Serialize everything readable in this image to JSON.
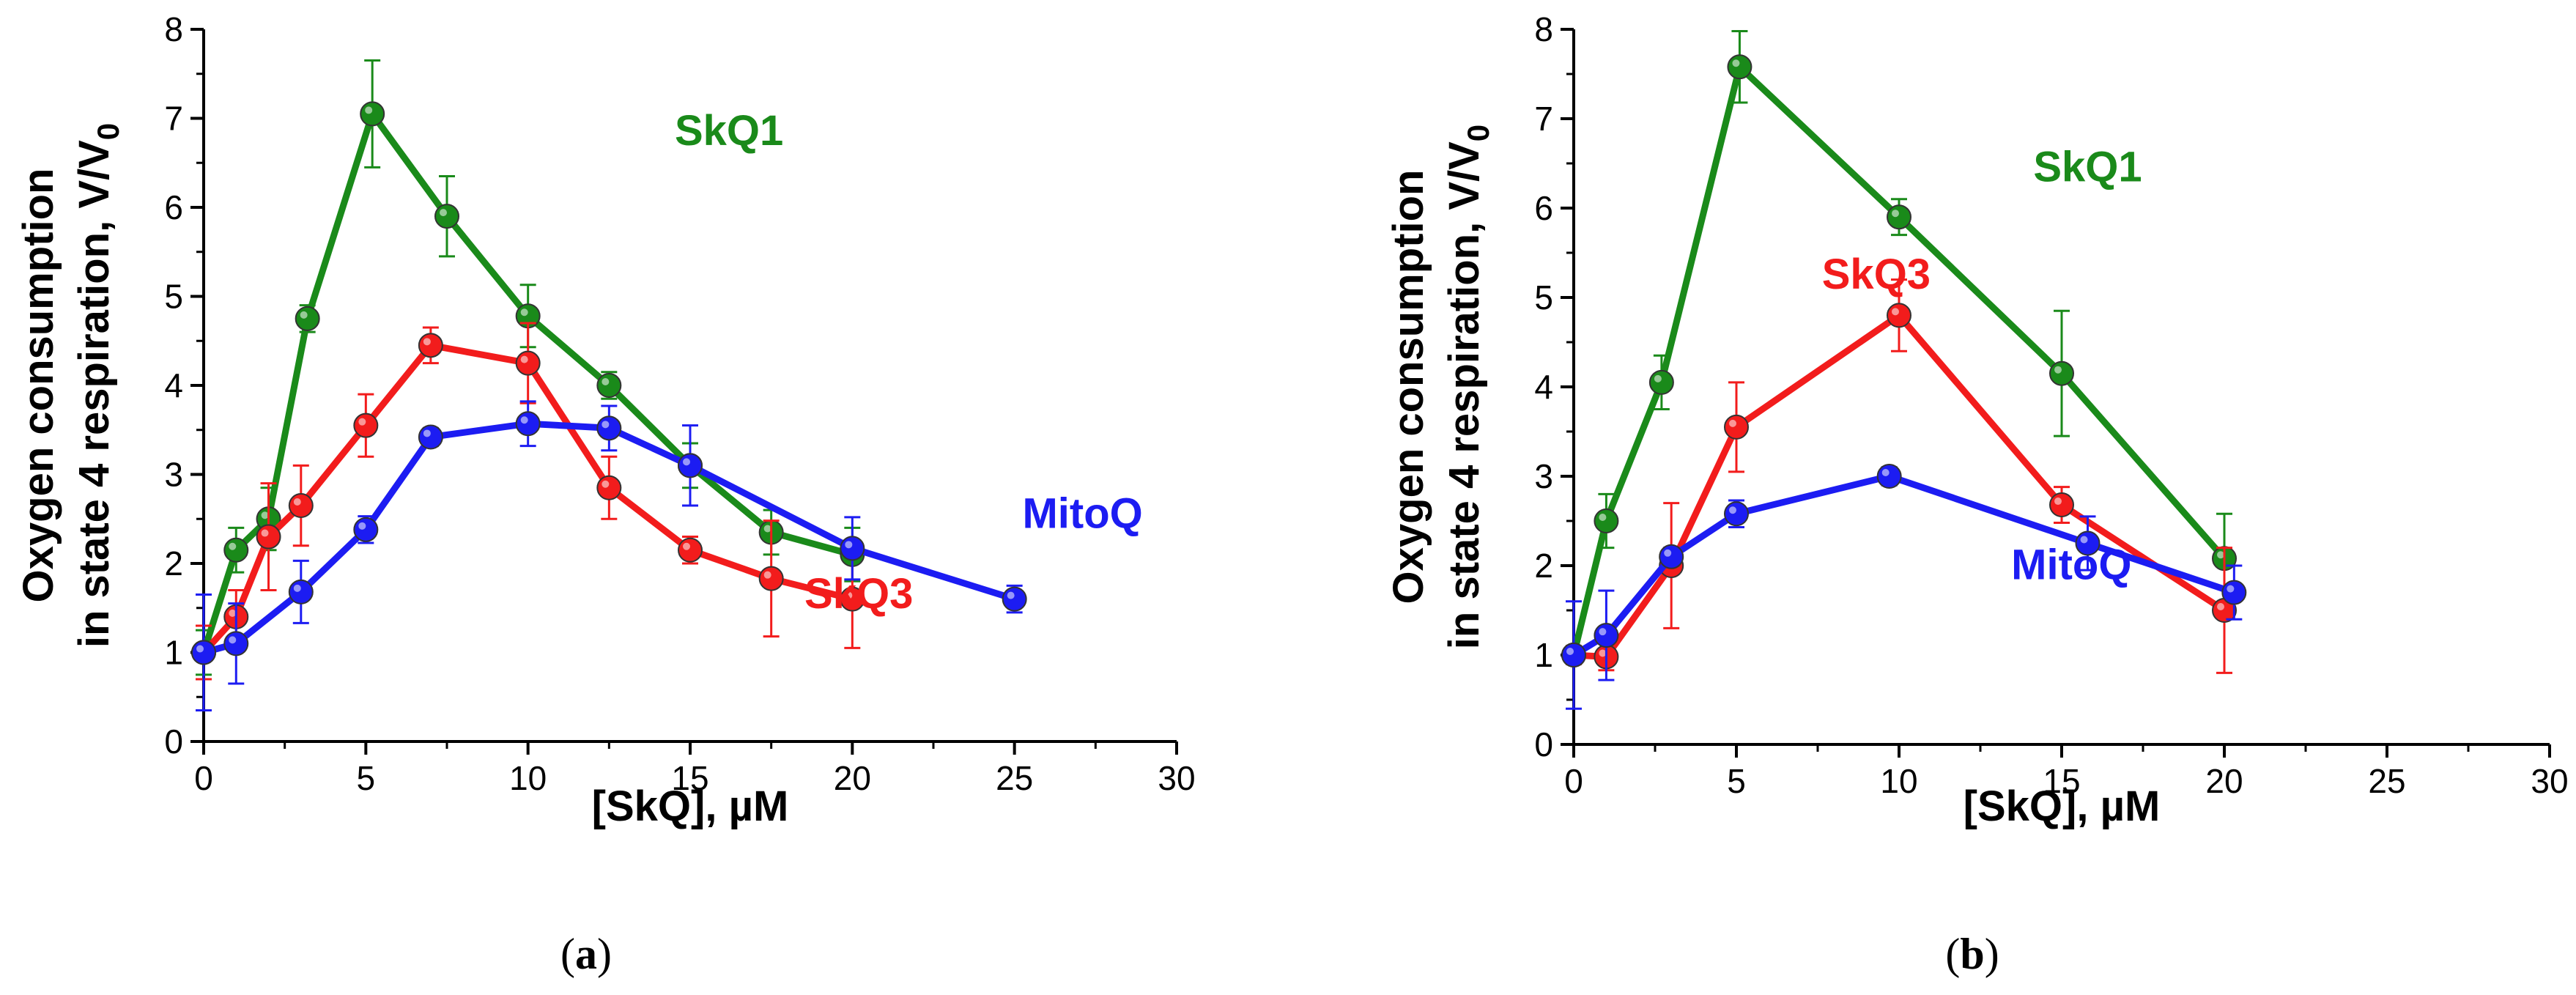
{
  "colors": {
    "SkQ1": "#1a8a1a",
    "SkQ3": "#f21c1c",
    "MitoQ": "#1c1cf2"
  },
  "chart_data": [
    {
      "type": "line",
      "panel": "a",
      "caption_prefix": "(",
      "caption_letter": "a",
      "caption_suffix": ")",
      "xlabel": "[SkQ], µM",
      "ylabel_line1": "Oxygen consumption",
      "ylabel_line2_main": "in state 4 respiration, V/V",
      "ylabel_line2_sub": "0",
      "xlim": [
        0,
        30
      ],
      "ylim": [
        0,
        8
      ],
      "xticks": [
        "0",
        "5",
        "10",
        "15",
        "20",
        "25",
        "30"
      ],
      "yticks": [
        "0",
        "1",
        "2",
        "3",
        "4",
        "5",
        "6",
        "7",
        "8"
      ],
      "series": [
        {
          "name": "SkQ1",
          "label": "SkQ1",
          "points": [
            [
              0,
              1.0,
              0.25
            ],
            [
              1,
              2.15,
              0.25
            ],
            [
              2,
              2.5,
              0.35
            ],
            [
              3.2,
              4.75,
              0.15
            ],
            [
              5.2,
              7.05,
              0.6
            ],
            [
              7.5,
              5.9,
              0.45
            ],
            [
              10,
              4.78,
              0.35
            ],
            [
              12.5,
              4.0,
              0.15
            ],
            [
              15,
              3.1,
              0.25
            ],
            [
              17.5,
              2.35,
              0.25
            ],
            [
              20,
              2.1,
              0.3
            ]
          ]
        },
        {
          "name": "SkQ3",
          "label": "SkQ3",
          "points": [
            [
              0,
              1.0,
              0.3
            ],
            [
              1,
              1.4,
              0.3
            ],
            [
              2,
              2.3,
              0.6
            ],
            [
              3,
              2.65,
              0.45
            ],
            [
              5,
              3.55,
              0.35
            ],
            [
              7,
              4.45,
              0.2
            ],
            [
              10,
              4.25,
              0.45
            ],
            [
              12.5,
              2.85,
              0.35
            ],
            [
              15,
              2.15,
              0.15
            ],
            [
              17.5,
              1.83,
              0.65
            ],
            [
              20,
              1.6,
              0.55
            ]
          ]
        },
        {
          "name": "MitoQ",
          "label": "MitoQ",
          "points": [
            [
              0,
              1.0,
              0.65
            ],
            [
              1,
              1.1,
              0.45
            ],
            [
              3,
              1.68,
              0.35
            ],
            [
              5,
              2.38,
              0.15
            ],
            [
              7,
              3.42,
              0.1
            ],
            [
              10,
              3.57,
              0.25
            ],
            [
              12.5,
              3.52,
              0.25
            ],
            [
              15,
              3.1,
              0.45
            ],
            [
              20,
              2.17,
              0.35
            ],
            [
              25,
              1.6,
              0.15
            ]
          ]
        }
      ]
    },
    {
      "type": "line",
      "panel": "b",
      "caption_prefix": "(",
      "caption_letter": "b",
      "caption_suffix": ")",
      "xlabel": "[SkQ], µM",
      "ylabel_line1": "Oxygen consumption",
      "ylabel_line2_main": "in state 4 respiration, V/V",
      "ylabel_line2_sub": "0",
      "xlim": [
        0,
        30
      ],
      "ylim": [
        0,
        8
      ],
      "xticks": [
        "0",
        "5",
        "10",
        "15",
        "20",
        "25",
        "30"
      ],
      "yticks": [
        "0",
        "1",
        "2",
        "3",
        "4",
        "5",
        "6",
        "7",
        "8"
      ],
      "series": [
        {
          "name": "SkQ1",
          "label": "SkQ1",
          "points": [
            [
              0,
              1.0,
              0.1
            ],
            [
              1,
              2.5,
              0.3
            ],
            [
              2.7,
              4.05,
              0.3
            ],
            [
              5.1,
              7.58,
              0.4
            ],
            [
              10,
              5.9,
              0.2
            ],
            [
              15,
              4.15,
              0.7
            ],
            [
              20,
              2.08,
              0.5
            ]
          ]
        },
        {
          "name": "SkQ3",
          "label": "SkQ3",
          "points": [
            [
              0,
              1.0,
              0.1
            ],
            [
              1,
              0.98,
              0.15
            ],
            [
              3,
              2.0,
              0.7
            ],
            [
              5,
              3.55,
              0.5
            ],
            [
              10,
              4.8,
              0.4
            ],
            [
              15,
              2.68,
              0.2
            ],
            [
              20,
              1.5,
              0.7
            ]
          ]
        },
        {
          "name": "MitoQ",
          "label": "MitoQ",
          "points": [
            [
              0,
              1.0,
              0.6
            ],
            [
              1,
              1.22,
              0.5
            ],
            [
              3,
              2.1,
              0.1
            ],
            [
              5,
              2.58,
              0.15
            ],
            [
              9.7,
              3.0,
              0.1
            ],
            [
              15.8,
              2.25,
              0.3
            ],
            [
              20.3,
              1.7,
              0.3
            ]
          ]
        }
      ]
    }
  ]
}
